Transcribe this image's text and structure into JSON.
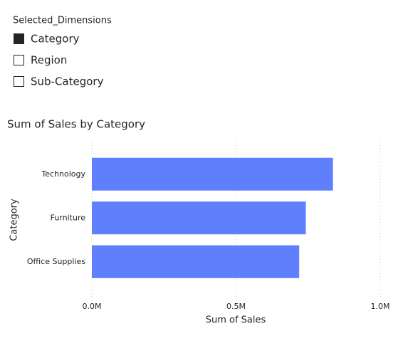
{
  "slicer": {
    "title": "Selected_Dimensions",
    "items": [
      {
        "label": "Category",
        "checked": true
      },
      {
        "label": "Region",
        "checked": false
      },
      {
        "label": "Sub-Category",
        "checked": false
      }
    ]
  },
  "chart_data": {
    "type": "bar",
    "orientation": "horizontal",
    "title": "Sum of Sales by Category",
    "categories": [
      "Technology",
      "Furniture",
      "Office Supplies"
    ],
    "values": [
      836000,
      742000,
      719000
    ],
    "color": "#5f7ffc",
    "xlim": [
      0,
      1000000
    ],
    "xticks": [
      {
        "value": 0,
        "label": "0.0M"
      },
      {
        "value": 500000,
        "label": "0.5M"
      },
      {
        "value": 1000000,
        "label": "1.0M"
      }
    ],
    "x_label": "Sum of Sales",
    "y_label": "Category",
    "grid": true
  }
}
